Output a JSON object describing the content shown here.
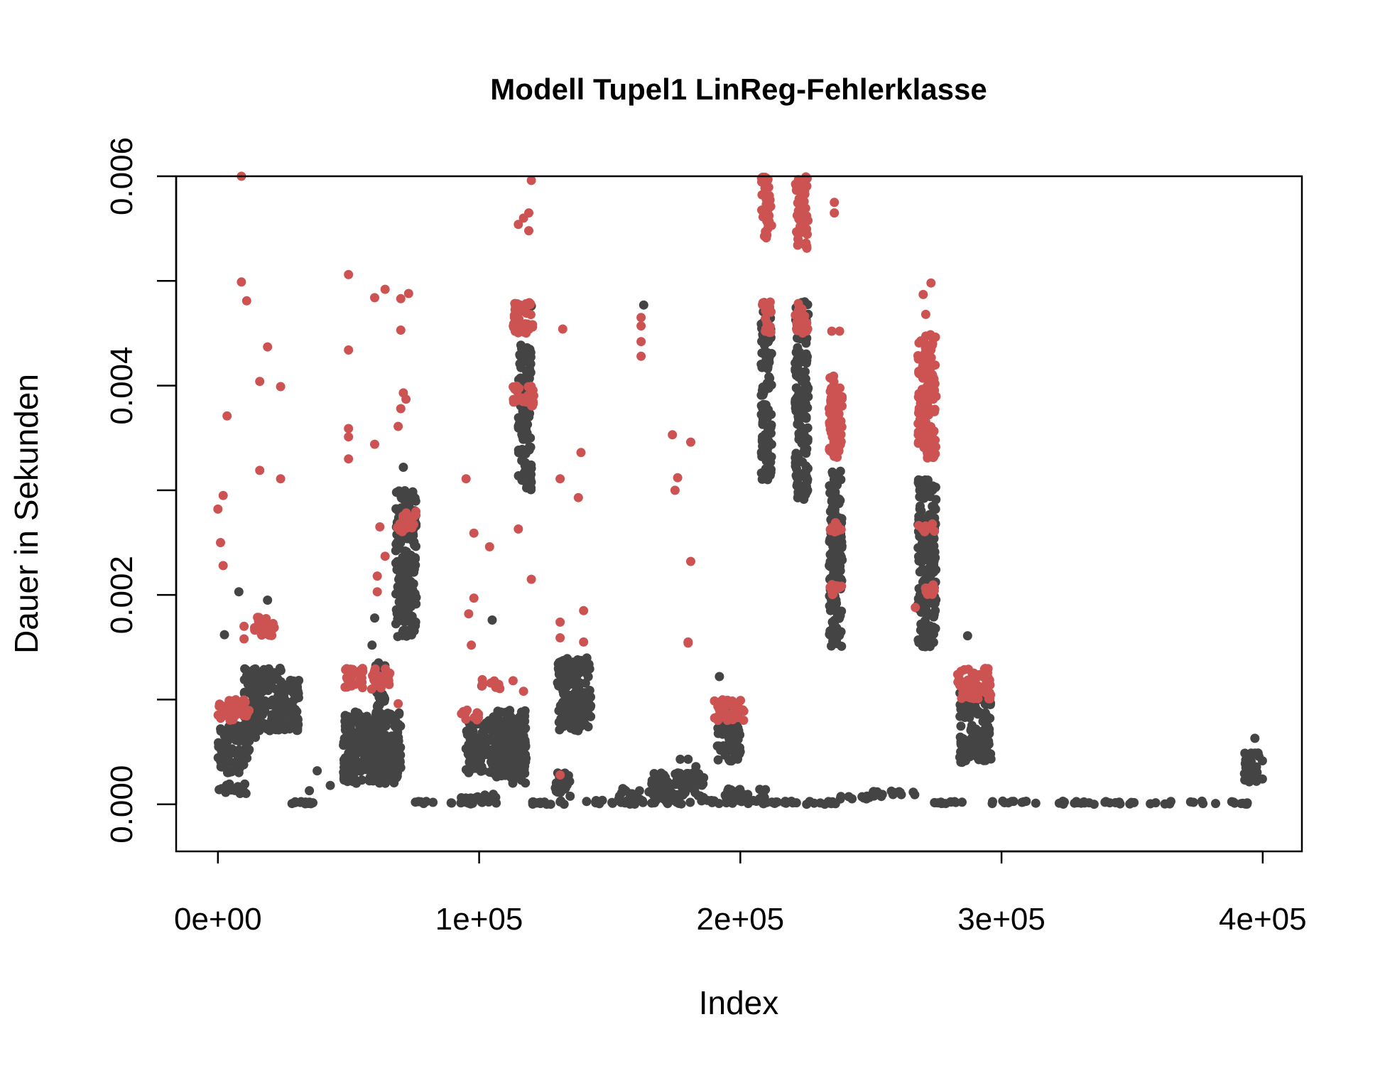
{
  "chart_data": {
    "type": "scatter",
    "title": "Modell Tupel1 LinReg-Fehlerklasse",
    "xlabel": "Index",
    "ylabel": "Dauer in Sekunden",
    "xlim": [
      -16000,
      415000
    ],
    "ylim": [
      -0.00045,
      0.006
    ],
    "x_ticks": [
      0,
      100000,
      200000,
      300000,
      400000
    ],
    "x_tick_labels": [
      "0e+00",
      "1e+05",
      "2e+05",
      "3e+05",
      "4e+05"
    ],
    "y_ticks": [
      0.0,
      0.001,
      0.002,
      0.003,
      0.004,
      0.005,
      0.006
    ],
    "y_tick_labels": [
      "0.000",
      "",
      "0.002",
      "",
      "0.004",
      "",
      "0.006"
    ],
    "grid": false,
    "legend": "none",
    "colors": {
      "normal": "#444444",
      "error": "#cd5353"
    },
    "series": [
      {
        "role": "normal",
        "color": "#444444",
        "bands": [
          [
            0,
            12000,
            0.0003,
            0.00075
          ],
          [
            0,
            11000,
            0.0001,
            0.0002
          ],
          [
            10000,
            16000,
            0.0006,
            0.0013
          ],
          [
            14000,
            25000,
            0.0007,
            0.0013
          ],
          [
            24000,
            31000,
            0.0007,
            0.0012
          ],
          [
            28000,
            42000,
            0.0,
            3e-05
          ],
          [
            48000,
            70000,
            0.0002,
            0.0009
          ],
          [
            48000,
            70000,
            0.0003,
            0.0006
          ],
          [
            60000,
            64000,
            0.0008,
            0.0014
          ],
          [
            68000,
            76000,
            0.0016,
            0.003
          ],
          [
            75000,
            97000,
            0.0,
            3e-05
          ],
          [
            93000,
            108000,
            0.0,
            0.0001
          ],
          [
            95000,
            112000,
            0.0003,
            0.0008
          ],
          [
            105000,
            118000,
            0.0002,
            0.0009
          ],
          [
            115000,
            120000,
            0.003,
            0.0044
          ],
          [
            120000,
            128000,
            0.0,
            3e-05
          ],
          [
            129000,
            135000,
            0.0,
            0.0003
          ],
          [
            130000,
            143000,
            0.0007,
            0.0014
          ],
          [
            141000,
            192000,
            0.0,
            4e-05
          ],
          [
            153000,
            162000,
            0.0,
            0.00015
          ],
          [
            165000,
            186000,
            5e-05,
            0.0003
          ],
          [
            191000,
            200000,
            0.0004,
            0.0009
          ],
          [
            194000,
            210000,
            0.0,
            0.00015
          ],
          [
            208000,
            212000,
            0.0031,
            0.0048
          ],
          [
            210000,
            222000,
            0.0,
            3e-05
          ],
          [
            221000,
            226000,
            0.0029,
            0.0048
          ],
          [
            225000,
            237000,
            0.0,
            3e-05
          ],
          [
            234000,
            239000,
            0.0015,
            0.0032
          ],
          [
            238000,
            250000,
            5e-05,
            8e-05
          ],
          [
            250000,
            268000,
            7e-05,
            0.00013
          ],
          [
            268000,
            275000,
            0.0015,
            0.0031
          ],
          [
            274000,
            285000,
            0.0,
            3e-05
          ],
          [
            284000,
            296000,
            0.0004,
            0.0011
          ],
          [
            296000,
            396000,
            0.0,
            3e-05
          ],
          [
            393000,
            400000,
            0.0002,
            0.0005
          ]
        ],
        "points": [
          [
            8000,
            0.00203
          ],
          [
            2500,
            0.00162
          ],
          [
            19000,
            0.00195
          ],
          [
            38000,
            0.00032
          ],
          [
            35000,
            0.00013
          ],
          [
            43000,
            0.00018
          ],
          [
            60000,
            0.00178
          ],
          [
            59000,
            0.00152
          ],
          [
            71000,
            0.00322
          ],
          [
            105000,
            0.00176
          ],
          [
            101000,
            0.00113
          ],
          [
            120000,
            0.00476
          ],
          [
            132000,
            0.00028
          ],
          [
            163000,
            0.00477
          ],
          [
            155000,
            0.00015
          ],
          [
            180000,
            0.00043
          ],
          [
            177000,
            0.00043
          ],
          [
            183000,
            0.00036
          ],
          [
            192000,
            0.00122
          ],
          [
            287000,
            0.00161
          ],
          [
            397000,
            0.00063
          ]
        ]
      },
      {
        "role": "error",
        "color": "#cd5353",
        "bands": [
          [
            0,
            12000,
            0.0008,
            0.001
          ],
          [
            14000,
            22000,
            0.0016,
            0.0018
          ],
          [
            48000,
            56000,
            0.0011,
            0.0013
          ],
          [
            58000,
            66000,
            0.0011,
            0.0013
          ],
          [
            68000,
            76000,
            0.0026,
            0.0028
          ],
          [
            93000,
            100000,
            0.0008,
            0.0009
          ],
          [
            101000,
            108000,
            0.0011,
            0.0012
          ],
          [
            113000,
            121000,
            0.0045,
            0.0048
          ],
          [
            113000,
            121000,
            0.0038,
            0.004
          ],
          [
            190000,
            202000,
            0.0008,
            0.001
          ],
          [
            208000,
            212000,
            0.0045,
            0.0048
          ],
          [
            208000,
            212000,
            0.0054,
            0.006
          ],
          [
            221000,
            226000,
            0.0045,
            0.0048
          ],
          [
            221000,
            226000,
            0.0053,
            0.006
          ],
          [
            234000,
            239000,
            0.0033,
            0.0041
          ],
          [
            234000,
            239000,
            0.0026,
            0.0027
          ],
          [
            234000,
            239000,
            0.002,
            0.0021
          ],
          [
            268000,
            275000,
            0.0033,
            0.0045
          ],
          [
            268000,
            275000,
            0.0026,
            0.0027
          ],
          [
            268000,
            275000,
            0.002,
            0.0021
          ],
          [
            283000,
            296000,
            0.001,
            0.0013
          ]
        ],
        "points": [
          [
            0,
            0.00282
          ],
          [
            2000,
            0.00295
          ],
          [
            1000,
            0.0025
          ],
          [
            2000,
            0.00228
          ],
          [
            3500,
            0.00371
          ],
          [
            9000,
            0.006
          ],
          [
            9000,
            0.00499
          ],
          [
            11000,
            0.00481
          ],
          [
            16000,
            0.00404
          ],
          [
            19000,
            0.00437
          ],
          [
            24000,
            0.00399
          ],
          [
            16000,
            0.00319
          ],
          [
            24000,
            0.00311
          ],
          [
            10000,
            0.0017
          ],
          [
            10000,
            0.00158
          ],
          [
            50000,
            0.00506
          ],
          [
            50000,
            0.00434
          ],
          [
            50000,
            0.00359
          ],
          [
            50000,
            0.00351
          ],
          [
            50000,
            0.0033
          ],
          [
            60000,
            0.00484
          ],
          [
            64000,
            0.00492
          ],
          [
            60000,
            0.00344
          ],
          [
            64000,
            0.00237
          ],
          [
            61000,
            0.00218
          ],
          [
            61000,
            0.00203
          ],
          [
            62000,
            0.00265
          ],
          [
            70000,
            0.00483
          ],
          [
            73000,
            0.00488
          ],
          [
            70000,
            0.00453
          ],
          [
            71000,
            0.00393
          ],
          [
            72000,
            0.00387
          ],
          [
            70000,
            0.00378
          ],
          [
            69000,
            0.00361
          ],
          [
            69000,
            0.00096
          ],
          [
            95000,
            0.00311
          ],
          [
            96000,
            0.00182
          ],
          [
            98000,
            0.00197
          ],
          [
            97000,
            0.00152
          ],
          [
            98000,
            0.00259
          ],
          [
            104000,
            0.00246
          ],
          [
            115000,
            0.00554
          ],
          [
            117000,
            0.0056
          ],
          [
            119000,
            0.00565
          ],
          [
            120000,
            0.00596
          ],
          [
            119000,
            0.00548
          ],
          [
            115000,
            0.00263
          ],
          [
            120000,
            0.00215
          ],
          [
            113000,
            0.00118
          ],
          [
            117000,
            0.00108
          ],
          [
            132000,
            0.00454
          ],
          [
            131000,
            0.00311
          ],
          [
            131000,
            0.00174
          ],
          [
            131000,
            0.00159
          ],
          [
            131000,
            0.00028
          ],
          [
            139000,
            0.00336
          ],
          [
            138000,
            0.00293
          ],
          [
            140000,
            0.00185
          ],
          [
            140000,
            0.00155
          ],
          [
            162000,
            0.00465
          ],
          [
            162000,
            0.00457
          ],
          [
            162000,
            0.00442
          ],
          [
            162000,
            0.00428
          ],
          [
            174000,
            0.00353
          ],
          [
            176000,
            0.00312
          ],
          [
            175000,
            0.003
          ],
          [
            181000,
            0.00346
          ],
          [
            181000,
            0.00232
          ],
          [
            180000,
            0.00155
          ],
          [
            180000,
            0.00154
          ],
          [
            236000,
            0.00575
          ],
          [
            236000,
            0.00565
          ],
          [
            238000,
            0.00452
          ],
          [
            235000,
            0.00452
          ],
          [
            270000,
            0.00487
          ],
          [
            271000,
            0.00468
          ],
          [
            273000,
            0.00498
          ],
          [
            271000,
            0.0042
          ],
          [
            272000,
            0.00408
          ],
          [
            267000,
            0.00188
          ]
        ]
      }
    ]
  }
}
